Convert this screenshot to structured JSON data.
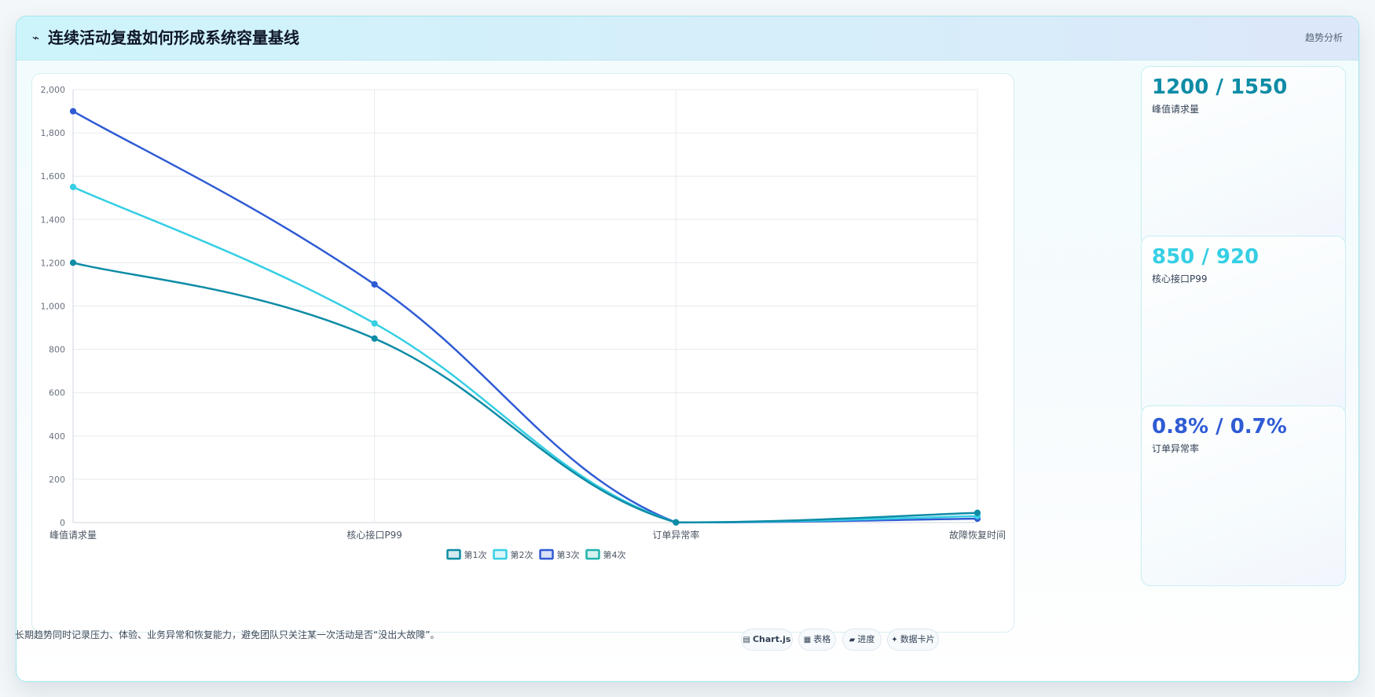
{
  "header": {
    "icon": "⌁",
    "title": "连续活动复盘如何形成系统容量基线",
    "tag": "趋势分析"
  },
  "chart_data": {
    "type": "line",
    "categories": [
      "峰值请求量",
      "核心接口P99",
      "订单异常率",
      "故障恢复时间"
    ],
    "series": [
      {
        "name": "第1次",
        "values": [
          1200,
          850,
          0.8,
          45
        ],
        "color": "#0e8ca6"
      },
      {
        "name": "第2次",
        "values": [
          1550,
          920,
          0.7,
          30
        ],
        "color": "#36cfe4"
      },
      {
        "name": "第3次",
        "values": [
          1900,
          1100,
          0.6,
          18
        ],
        "color": "#2f5bd4"
      },
      {
        "name": "第4次",
        "values": [
          null,
          null,
          null,
          null
        ],
        "color": "#22b3ad"
      }
    ],
    "ylim": [
      0,
      2000
    ],
    "yticks": [
      0,
      200,
      400,
      600,
      800,
      1000,
      1200,
      1400,
      1600,
      1800,
      2000
    ],
    "ytick_labels": [
      "0",
      "200",
      "400",
      "600",
      "800",
      "1,000",
      "1,200",
      "1,400",
      "1,600",
      "1,800",
      "2,000"
    ],
    "grid": true,
    "legend": "bottom"
  },
  "stats": [
    {
      "value": "1200 / 1550",
      "label": "峰值请求量",
      "color": "#0e8ca6"
    },
    {
      "value": "850 / 920",
      "label": "核心接口P99",
      "color": "#36cfe4"
    },
    {
      "value": "0.8% / 0.7%",
      "label": "订单异常率",
      "color": "#2f5bd4"
    }
  ],
  "footer": {
    "note": "长期趋势同时记录压力、体验、业务异常和恢复能力，避免团队只关注某一次活动是否“没出大故障”。",
    "pills": [
      {
        "icon": "▤",
        "label": "Chart.js",
        "icon_name": "chart-icon"
      },
      {
        "icon": "▦",
        "label": "表格",
        "icon_name": "table-icon"
      },
      {
        "icon": "▰",
        "label": "进度",
        "icon_name": "progress-icon"
      },
      {
        "icon": "✦",
        "label": "数据卡片",
        "icon_name": "sparkle-icon"
      }
    ]
  }
}
